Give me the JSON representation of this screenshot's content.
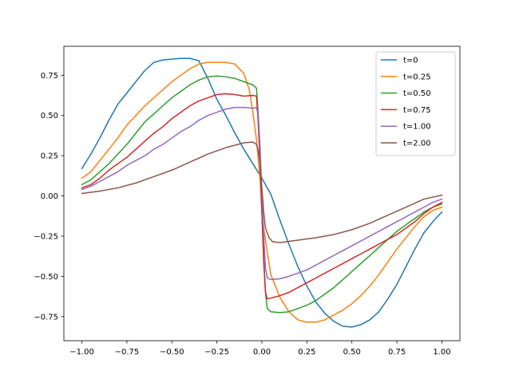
{
  "chart_data": {
    "type": "line",
    "title": "",
    "xlabel": "",
    "ylabel": "",
    "xlim": [
      -1.1,
      1.1
    ],
    "ylim": [
      -0.9,
      0.93
    ],
    "xticks": [
      -1.0,
      -0.75,
      -0.5,
      -0.25,
      0.0,
      0.25,
      0.5,
      0.75,
      1.0
    ],
    "xtick_labels": [
      "−1.00",
      "−0.75",
      "−0.50",
      "−0.25",
      "0.00",
      "0.25",
      "0.50",
      "0.75",
      "1.00"
    ],
    "yticks": [
      -0.75,
      -0.5,
      -0.25,
      0.0,
      0.25,
      0.5,
      0.75
    ],
    "ytick_labels": [
      "−0.75",
      "−0.50",
      "−0.25",
      "0.00",
      "0.25",
      "0.50",
      "0.75"
    ],
    "grid": false,
    "legend_position": "top-right",
    "series": [
      {
        "name": "t=0",
        "color": "#1f77b4",
        "x": [
          -1.0,
          -0.95,
          -0.9,
          -0.85,
          -0.8,
          -0.75,
          -0.7,
          -0.65,
          -0.6,
          -0.55,
          -0.5,
          -0.45,
          -0.4,
          -0.35,
          -0.3,
          -0.25,
          -0.2,
          -0.15,
          -0.1,
          -0.05,
          0.0,
          0.05,
          0.1,
          0.15,
          0.2,
          0.25,
          0.3,
          0.35,
          0.4,
          0.45,
          0.5,
          0.55,
          0.6,
          0.65,
          0.7,
          0.75,
          0.8,
          0.85,
          0.9,
          0.95,
          1.0
        ],
        "y": [
          0.17,
          0.26,
          0.36,
          0.47,
          0.57,
          0.64,
          0.71,
          0.78,
          0.83,
          0.845,
          0.85,
          0.855,
          0.855,
          0.84,
          0.73,
          0.6,
          0.5,
          0.39,
          0.29,
          0.2,
          0.11,
          0.01,
          -0.15,
          -0.3,
          -0.44,
          -0.56,
          -0.66,
          -0.73,
          -0.78,
          -0.81,
          -0.815,
          -0.8,
          -0.77,
          -0.72,
          -0.64,
          -0.55,
          -0.44,
          -0.33,
          -0.23,
          -0.16,
          -0.1
        ]
      },
      {
        "name": "t=0.25",
        "color": "#ff7f0e",
        "x": [
          -1.0,
          -0.95,
          -0.9,
          -0.85,
          -0.8,
          -0.75,
          -0.7,
          -0.65,
          -0.6,
          -0.55,
          -0.5,
          -0.45,
          -0.4,
          -0.35,
          -0.3,
          -0.25,
          -0.2,
          -0.15,
          -0.1,
          -0.07,
          -0.05,
          -0.03,
          -0.01,
          0.0,
          0.01,
          0.03,
          0.05,
          0.1,
          0.15,
          0.2,
          0.25,
          0.3,
          0.35,
          0.4,
          0.45,
          0.5,
          0.55,
          0.6,
          0.65,
          0.7,
          0.75,
          0.8,
          0.85,
          0.9,
          0.95,
          1.0
        ],
        "y": [
          0.11,
          0.15,
          0.22,
          0.29,
          0.36,
          0.44,
          0.5,
          0.56,
          0.61,
          0.66,
          0.71,
          0.75,
          0.79,
          0.82,
          0.83,
          0.83,
          0.83,
          0.82,
          0.76,
          0.66,
          0.52,
          0.35,
          0.1,
          -0.1,
          -0.2,
          -0.35,
          -0.49,
          -0.63,
          -0.72,
          -0.77,
          -0.785,
          -0.785,
          -0.77,
          -0.74,
          -0.71,
          -0.67,
          -0.62,
          -0.56,
          -0.49,
          -0.41,
          -0.33,
          -0.26,
          -0.19,
          -0.13,
          -0.09,
          -0.07
        ]
      },
      {
        "name": "t=0.50",
        "color": "#2ca02c",
        "x": [
          -1.0,
          -0.95,
          -0.9,
          -0.85,
          -0.8,
          -0.75,
          -0.7,
          -0.65,
          -0.6,
          -0.55,
          -0.5,
          -0.45,
          -0.4,
          -0.35,
          -0.3,
          -0.25,
          -0.2,
          -0.15,
          -0.1,
          -0.05,
          -0.03,
          -0.02,
          -0.01,
          0.0,
          0.01,
          0.02,
          0.03,
          0.05,
          0.1,
          0.15,
          0.2,
          0.25,
          0.3,
          0.35,
          0.4,
          0.45,
          0.5,
          0.55,
          0.6,
          0.65,
          0.7,
          0.75,
          0.8,
          0.85,
          0.9,
          0.95,
          1.0
        ],
        "y": [
          0.07,
          0.1,
          0.15,
          0.2,
          0.26,
          0.32,
          0.39,
          0.46,
          0.51,
          0.56,
          0.61,
          0.65,
          0.69,
          0.72,
          0.74,
          0.745,
          0.74,
          0.73,
          0.71,
          0.69,
          0.67,
          0.5,
          0.25,
          -0.1,
          -0.4,
          -0.6,
          -0.7,
          -0.72,
          -0.725,
          -0.72,
          -0.7,
          -0.68,
          -0.65,
          -0.61,
          -0.57,
          -0.52,
          -0.47,
          -0.42,
          -0.37,
          -0.32,
          -0.27,
          -0.22,
          -0.18,
          -0.14,
          -0.1,
          -0.07,
          -0.05
        ]
      },
      {
        "name": "t=0.75",
        "color": "#d62728",
        "x": [
          -1.0,
          -0.95,
          -0.9,
          -0.85,
          -0.8,
          -0.75,
          -0.7,
          -0.65,
          -0.6,
          -0.55,
          -0.5,
          -0.45,
          -0.4,
          -0.35,
          -0.3,
          -0.25,
          -0.2,
          -0.15,
          -0.1,
          -0.05,
          -0.03,
          -0.02,
          -0.01,
          0.0,
          0.01,
          0.02,
          0.03,
          0.05,
          0.1,
          0.15,
          0.2,
          0.25,
          0.3,
          0.35,
          0.4,
          0.45,
          0.5,
          0.55,
          0.6,
          0.65,
          0.7,
          0.75,
          0.8,
          0.85,
          0.9,
          0.95,
          1.0
        ],
        "y": [
          0.05,
          0.07,
          0.11,
          0.16,
          0.2,
          0.24,
          0.29,
          0.34,
          0.39,
          0.43,
          0.48,
          0.52,
          0.56,
          0.59,
          0.61,
          0.63,
          0.635,
          0.63,
          0.62,
          0.625,
          0.62,
          0.45,
          0.2,
          -0.1,
          -0.4,
          -0.6,
          -0.64,
          -0.635,
          -0.62,
          -0.6,
          -0.57,
          -0.54,
          -0.51,
          -0.48,
          -0.45,
          -0.42,
          -0.39,
          -0.36,
          -0.33,
          -0.3,
          -0.27,
          -0.24,
          -0.2,
          -0.16,
          -0.11,
          -0.07,
          -0.04
        ]
      },
      {
        "name": "t=1.00",
        "color": "#9467bd",
        "x": [
          -1.0,
          -0.95,
          -0.9,
          -0.85,
          -0.8,
          -0.75,
          -0.7,
          -0.65,
          -0.6,
          -0.55,
          -0.5,
          -0.45,
          -0.4,
          -0.35,
          -0.3,
          -0.25,
          -0.2,
          -0.15,
          -0.1,
          -0.05,
          -0.03,
          -0.02,
          -0.01,
          0.0,
          0.01,
          0.02,
          0.03,
          0.05,
          0.1,
          0.15,
          0.2,
          0.25,
          0.3,
          0.35,
          0.4,
          0.45,
          0.5,
          0.55,
          0.6,
          0.65,
          0.7,
          0.75,
          0.8,
          0.85,
          0.9,
          0.95,
          1.0
        ],
        "y": [
          0.04,
          0.06,
          0.09,
          0.12,
          0.15,
          0.19,
          0.22,
          0.25,
          0.29,
          0.32,
          0.36,
          0.4,
          0.43,
          0.47,
          0.5,
          0.52,
          0.54,
          0.55,
          0.55,
          0.545,
          0.55,
          0.5,
          0.3,
          0.0,
          -0.25,
          -0.45,
          -0.51,
          -0.52,
          -0.515,
          -0.5,
          -0.48,
          -0.46,
          -0.43,
          -0.4,
          -0.37,
          -0.34,
          -0.31,
          -0.28,
          -0.25,
          -0.22,
          -0.19,
          -0.16,
          -0.13,
          -0.1,
          -0.07,
          -0.04,
          -0.02
        ]
      },
      {
        "name": "t=2.00",
        "color": "#8c564b",
        "x": [
          -1.0,
          -0.9,
          -0.8,
          -0.7,
          -0.6,
          -0.5,
          -0.4,
          -0.3,
          -0.2,
          -0.1,
          -0.05,
          -0.03,
          -0.02,
          -0.01,
          0.0,
          0.01,
          0.02,
          0.04,
          0.06,
          0.1,
          0.2,
          0.3,
          0.4,
          0.5,
          0.6,
          0.7,
          0.8,
          0.9,
          1.0
        ],
        "y": [
          0.015,
          0.03,
          0.05,
          0.08,
          0.12,
          0.16,
          0.21,
          0.26,
          0.3,
          0.33,
          0.335,
          0.32,
          0.28,
          0.2,
          0.05,
          -0.1,
          -0.2,
          -0.26,
          -0.285,
          -0.29,
          -0.275,
          -0.26,
          -0.24,
          -0.21,
          -0.17,
          -0.12,
          -0.07,
          -0.02,
          0.005
        ]
      }
    ]
  }
}
